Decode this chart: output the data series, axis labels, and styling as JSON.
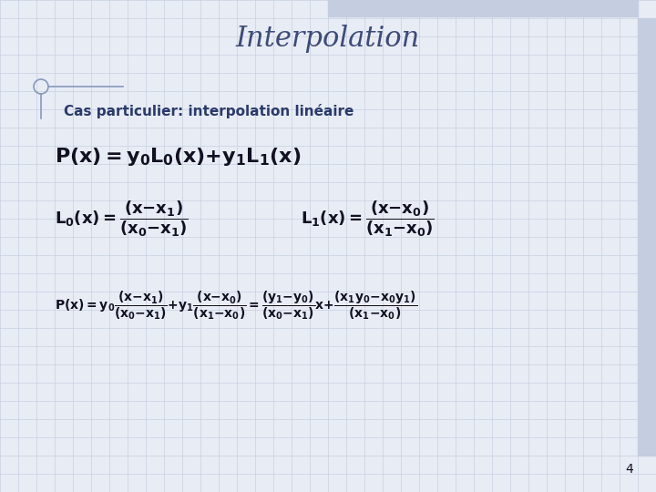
{
  "title": "Interpolation",
  "title_color": "#3d4b7a",
  "title_fontsize": 22,
  "subtitle": "Cas particulier: interpolation linéaire",
  "subtitle_color": "#2a3a6a",
  "subtitle_fontsize": 11,
  "bg_color": "#e8ecf5",
  "page_number": "4",
  "formula_color": "#111122",
  "grid_color": "#c8d0e0",
  "top_bar_color": "#c5cde0",
  "right_bar_color": "#c5cde0",
  "deco_color": "#8899bb"
}
